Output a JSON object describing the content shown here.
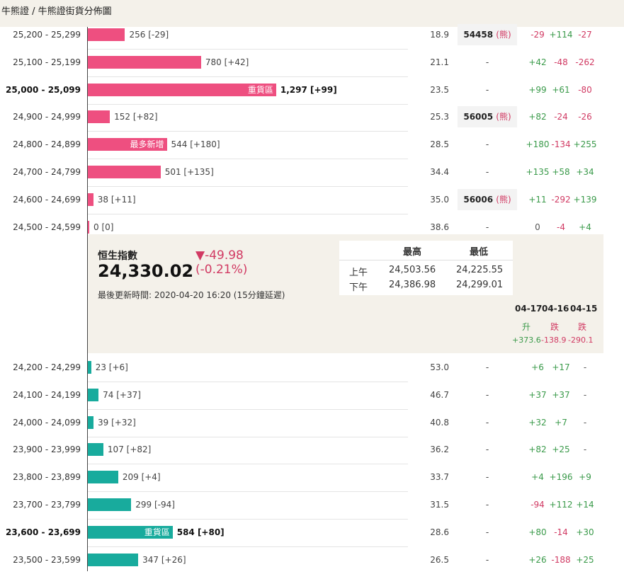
{
  "breadcrumb": "牛熊證 / 牛熊證街貨分佈圖",
  "rows_upper": [
    {
      "range": "25,200 - 25,299",
      "bold": false,
      "count": "256 [-29]",
      "tag": "",
      "pct": "18.9",
      "code": "54458",
      "bear": "(熊)",
      "d1": "-29",
      "d1c": "r",
      "d2": "+114",
      "d2c": "g",
      "d3": "-27",
      "d3c": "r"
    },
    {
      "range": "25,100 - 25,199",
      "bold": false,
      "count": "780 [+42]",
      "tag": "",
      "pct": "21.1",
      "code": "-",
      "bear": "",
      "d1": "+42",
      "d1c": "g",
      "d2": "-48",
      "d2c": "r",
      "d3": "-262",
      "d3c": "r"
    },
    {
      "range": "25,000 - 25,099",
      "bold": true,
      "count": "1,297 [+99]",
      "tag": "重貨區",
      "pct": "23.5",
      "code": "-",
      "bear": "",
      "d1": "+99",
      "d1c": "g",
      "d2": "+61",
      "d2c": "g",
      "d3": "-80",
      "d3c": "r"
    },
    {
      "range": "24,900 - 24,999",
      "bold": false,
      "count": "152 [+82]",
      "tag": "",
      "pct": "25.3",
      "code": "56005",
      "bear": "(熊)",
      "d1": "+82",
      "d1c": "g",
      "d2": "-24",
      "d2c": "r",
      "d3": "-26",
      "d3c": "r"
    },
    {
      "range": "24,800 - 24,899",
      "bold": false,
      "count": "544 [+180]",
      "tag": "最多新增",
      "pct": "28.5",
      "code": "-",
      "bear": "",
      "d1": "+180",
      "d1c": "g",
      "d2": "-134",
      "d2c": "r",
      "d3": "+255",
      "d3c": "g"
    },
    {
      "range": "24,700 - 24,799",
      "bold": false,
      "count": "501 [+135]",
      "tag": "",
      "pct": "34.4",
      "code": "-",
      "bear": "",
      "d1": "+135",
      "d1c": "g",
      "d2": "+58",
      "d2c": "g",
      "d3": "+34",
      "d3c": "g"
    },
    {
      "range": "24,600 - 24,699",
      "bold": false,
      "count": "38 [+11]",
      "tag": "",
      "pct": "35.0",
      "code": "56006",
      "bear": "(熊)",
      "d1": "+11",
      "d1c": "g",
      "d2": "-292",
      "d2c": "r",
      "d3": "+139",
      "d3c": "g"
    },
    {
      "range": "24,500 - 24,599",
      "bold": false,
      "count": "0 [0]",
      "tag": "",
      "pct": "38.6",
      "code": "-",
      "bear": "",
      "d1": "0",
      "d1c": "n",
      "d2": "-4",
      "d2c": "r",
      "d3": "+4",
      "d3c": "g"
    }
  ],
  "bars_upper": [
    256,
    780,
    1297,
    152,
    544,
    501,
    38,
    0
  ],
  "index_panel": {
    "label": "恒生指數",
    "value": "24,330.02",
    "change": "▼-49.98",
    "change_pct": "(-0.21%)",
    "updated": "最後更新時間: 2020-04-20 16:20 (15分鐘延遲)",
    "hl_head_high": "最高",
    "hl_head_low": "最低",
    "am_label": "上午",
    "am_high": "24,503.56",
    "am_low": "24,225.55",
    "pm_label": "下午",
    "pm_high": "24,386.98",
    "pm_low": "24,299.01",
    "dates": [
      "04-17",
      "04-16",
      "04-15"
    ],
    "directions": [
      "升",
      "跌",
      "跌"
    ],
    "changes": [
      "+373.6",
      "-138.9",
      "-290.1"
    ]
  },
  "rows_lower": [
    {
      "range": "24,200 - 24,299",
      "bold": false,
      "count": "23 [+6]",
      "tag": "",
      "pct": "53.0",
      "code": "-",
      "d1": "+6",
      "d1c": "g",
      "d2": "+17",
      "d2c": "g",
      "d3": "-",
      "d3c": "n"
    },
    {
      "range": "24,100 - 24,199",
      "bold": false,
      "count": "74 [+37]",
      "tag": "",
      "pct": "46.7",
      "code": "-",
      "d1": "+37",
      "d1c": "g",
      "d2": "+37",
      "d2c": "g",
      "d3": "-",
      "d3c": "n"
    },
    {
      "range": "24,000 - 24,099",
      "bold": false,
      "count": "39 [+32]",
      "tag": "",
      "pct": "40.8",
      "code": "-",
      "d1": "+32",
      "d1c": "g",
      "d2": "+7",
      "d2c": "g",
      "d3": "-",
      "d3c": "n"
    },
    {
      "range": "23,900 - 23,999",
      "bold": false,
      "count": "107 [+82]",
      "tag": "",
      "pct": "36.2",
      "code": "-",
      "d1": "+82",
      "d1c": "g",
      "d2": "+25",
      "d2c": "g",
      "d3": "-",
      "d3c": "n"
    },
    {
      "range": "23,800 - 23,899",
      "bold": false,
      "count": "209 [+4]",
      "tag": "",
      "pct": "33.7",
      "code": "-",
      "d1": "+4",
      "d1c": "g",
      "d2": "+196",
      "d2c": "g",
      "d3": "+9",
      "d3c": "g"
    },
    {
      "range": "23,700 - 23,799",
      "bold": false,
      "count": "299 [-94]",
      "tag": "",
      "pct": "31.5",
      "code": "-",
      "d1": "-94",
      "d1c": "r",
      "d2": "+112",
      "d2c": "g",
      "d3": "+14",
      "d3c": "g"
    },
    {
      "range": "23,600 - 23,699",
      "bold": true,
      "count": "584 [+80]",
      "tag": "重貨區",
      "pct": "28.6",
      "code": "-",
      "d1": "+80",
      "d1c": "g",
      "d2": "-14",
      "d2c": "r",
      "d3": "+30",
      "d3c": "g"
    },
    {
      "range": "23,500 - 23,599",
      "bold": false,
      "count": "347 [+26]",
      "tag": "",
      "pct": "26.5",
      "code": "-",
      "d1": "+26",
      "d1c": "g",
      "d2": "-188",
      "d2c": "r",
      "d3": "+25",
      "d3c": "g"
    }
  ],
  "bars_lower": [
    23,
    74,
    39,
    107,
    209,
    299,
    584,
    347
  ],
  "colors": {
    "bull_bar": "#18ab9d",
    "bear_bar": "#ee4f80",
    "up": "#3a9a4a",
    "down": "#d13a63",
    "panel_bg": "#f4f1ea"
  }
}
